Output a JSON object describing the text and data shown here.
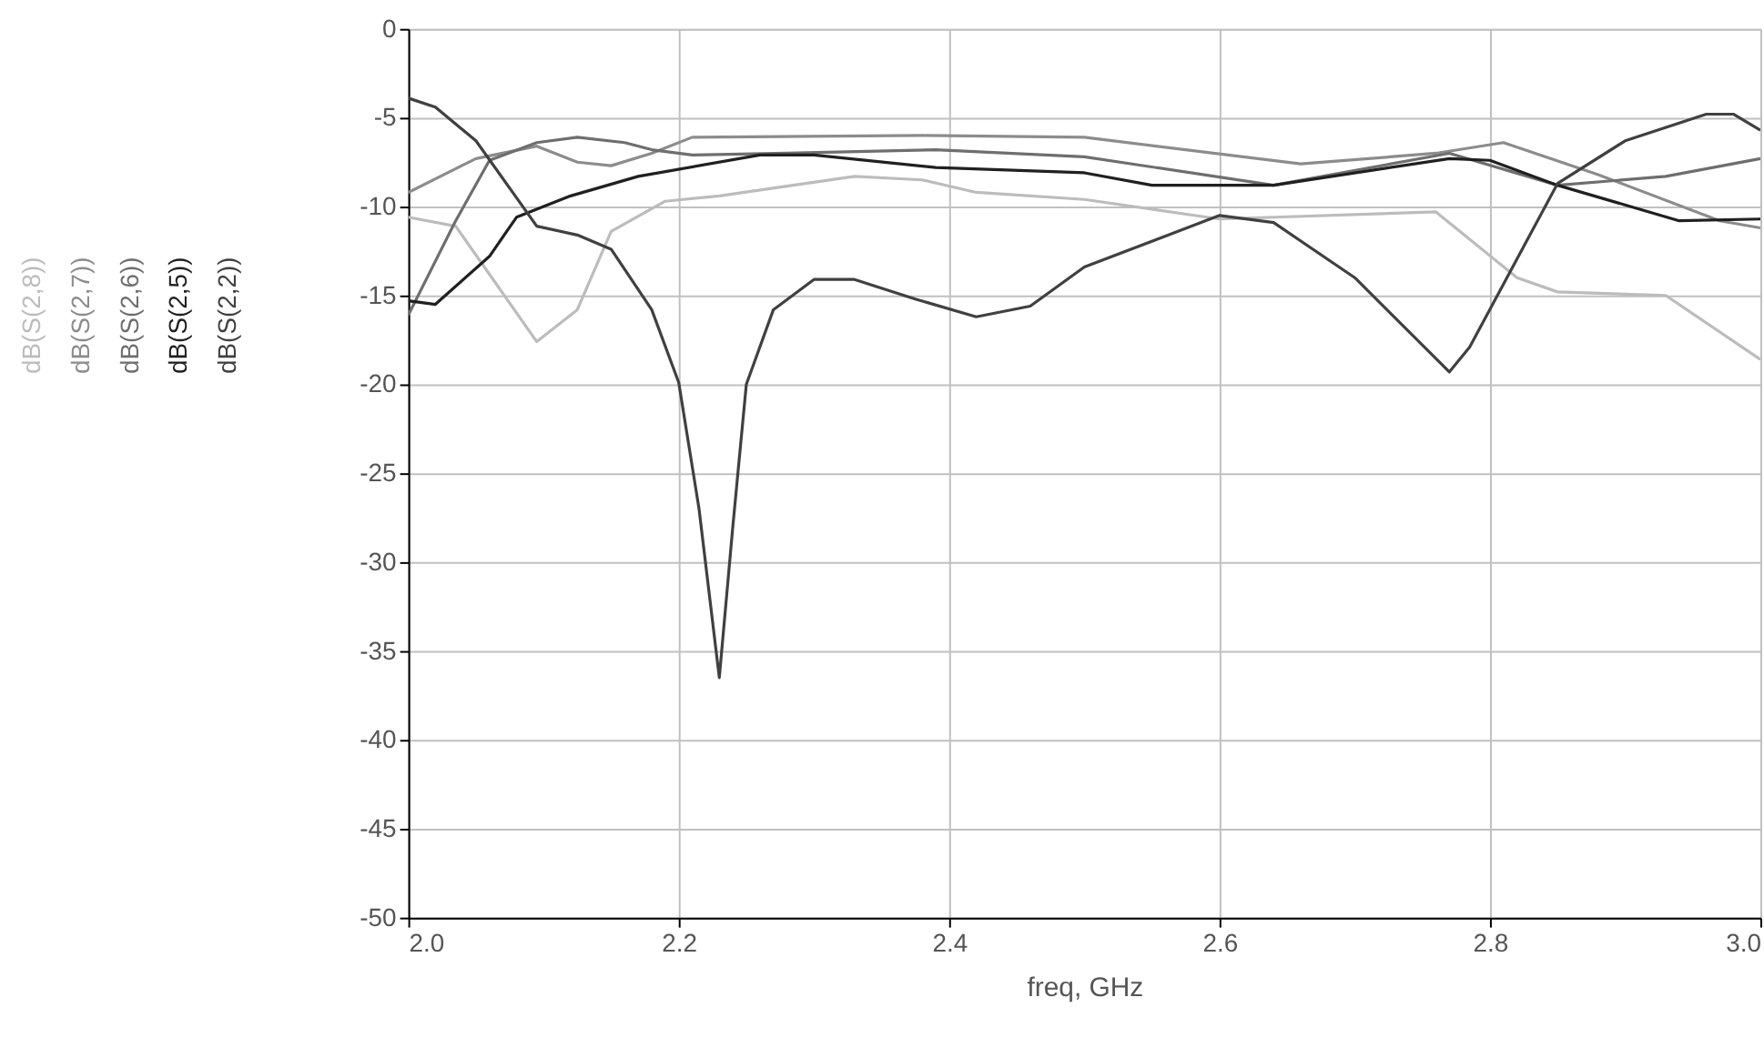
{
  "chart_data": {
    "type": "line",
    "xlabel": "freq, GHz",
    "xlim": [
      2,
      3
    ],
    "ylim": [
      -50,
      0
    ],
    "xticks": [
      {
        "value": 2,
        "label": "2.0"
      },
      2.2,
      2.4,
      2.6,
      2.8,
      {
        "value": 3,
        "label": "3.0"
      }
    ],
    "yticks": [
      0,
      -5,
      -10,
      -15,
      -20,
      -25,
      -30,
      -35,
      -40,
      -45,
      -50
    ],
    "grid": true,
    "legend": "left",
    "marker": "none",
    "line_style": "solid",
    "series": [
      {
        "name": "dB(S(2,8))",
        "color": "#bcbcbc",
        "x": [
          2.0,
          2.035,
          2.095,
          2.125,
          2.15,
          2.19,
          2.23,
          2.33,
          2.38,
          2.42,
          2.5,
          2.6,
          2.76,
          2.82,
          2.85,
          2.93,
          3.0
        ],
        "values": [
          -10.6,
          -11.1,
          -17.6,
          -15.8,
          -11.4,
          -9.7,
          -9.4,
          -8.3,
          -8.5,
          -9.2,
          -9.6,
          -10.7,
          -10.3,
          -14,
          -14.8,
          -15,
          -18.6
        ]
      },
      {
        "name": "dB(S(2,7))",
        "color": "#8c8c8c",
        "x": [
          2.0,
          2.05,
          2.095,
          2.125,
          2.15,
          2.18,
          2.21,
          2.38,
          2.5,
          2.66,
          2.76,
          2.81,
          2.88,
          2.97,
          3.0
        ],
        "values": [
          -9.2,
          -7.3,
          -6.6,
          -7.5,
          -7.7,
          -7.0,
          -6.1,
          -6.0,
          -6.1,
          -7.6,
          -7.0,
          -6.4,
          -8.2,
          -10.8,
          -11.2
        ]
      },
      {
        "name": "dB(S(2,6))",
        "color": "#6e6e6e",
        "x": [
          2.0,
          2.035,
          2.06,
          2.095,
          2.125,
          2.16,
          2.18,
          2.21,
          2.28,
          2.39,
          2.5,
          2.64,
          2.77,
          2.85,
          2.93,
          3.0
        ],
        "values": [
          -16.1,
          -10.8,
          -7.4,
          -6.4,
          -6.1,
          -6.4,
          -6.8,
          -7.1,
          -7.0,
          -6.8,
          -7.2,
          -8.8,
          -7.0,
          -8.8,
          -8.3,
          -7.3
        ]
      },
      {
        "name": "dB(S(2,5))",
        "color": "#202020",
        "x": [
          2.0,
          2.02,
          2.06,
          2.08,
          2.12,
          2.17,
          2.26,
          2.3,
          2.39,
          2.5,
          2.55,
          2.64,
          2.77,
          2.8,
          2.85,
          2.94,
          3.0
        ],
        "values": [
          -15.3,
          -15.5,
          -12.8,
          -10.6,
          -9.4,
          -8.3,
          -7.1,
          -7.1,
          -7.8,
          -8.1,
          -8.8,
          -8.8,
          -7.3,
          -7.4,
          -8.8,
          -10.8,
          -10.7
        ]
      },
      {
        "name": "dB(S(2,2))",
        "color": "#404040",
        "x": [
          2.0,
          2.02,
          2.05,
          2.095,
          2.125,
          2.15,
          2.18,
          2.2,
          2.215,
          2.23,
          2.24,
          2.25,
          2.27,
          2.3,
          2.33,
          2.375,
          2.42,
          2.46,
          2.5,
          2.6,
          2.64,
          2.7,
          2.77,
          2.785,
          2.85,
          2.9,
          2.96,
          2.98,
          3.0
        ],
        "values": [
          -3.9,
          -4.4,
          -6.3,
          -11.1,
          -11.6,
          -12.4,
          -15.8,
          -19.9,
          -27,
          -36.5,
          -28,
          -20,
          -15.8,
          -14.1,
          -14.1,
          -15.2,
          -16.2,
          -15.6,
          -13.4,
          -10.5,
          -10.9,
          -14,
          -19.3,
          -17.9,
          -8.7,
          -6.3,
          -4.8,
          -4.8,
          -5.7
        ]
      }
    ]
  }
}
